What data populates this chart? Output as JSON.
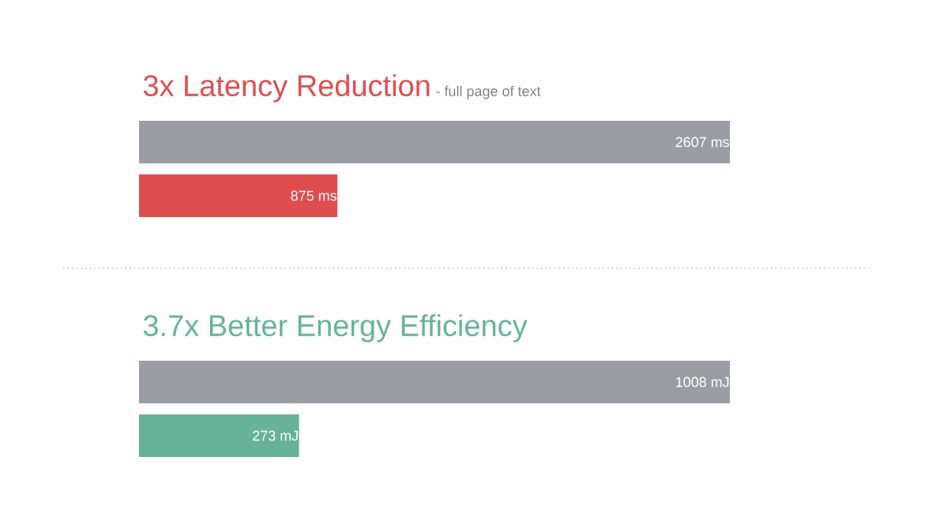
{
  "chart_data": [
    {
      "type": "bar",
      "orientation": "horizontal",
      "title": "3x Latency Reduction",
      "subtitle": "- full page of text",
      "categories": [
        null,
        null
      ],
      "values": [
        2607,
        875
      ],
      "colors": [
        "#9a9ea4",
        "#e04d4f"
      ],
      "value_labels": [
        "2607 ms",
        "875 ms"
      ]
    },
    {
      "type": "bar",
      "orientation": "horizontal",
      "title": "3.7x Better Energy Efficiency",
      "categories": [
        null,
        null
      ],
      "values": [
        1008,
        273
      ],
      "colors": [
        "#9a9ea4",
        "#66b39a"
      ],
      "value_labels": [
        "1008 mJ",
        "273 mJ"
      ]
    }
  ]
}
